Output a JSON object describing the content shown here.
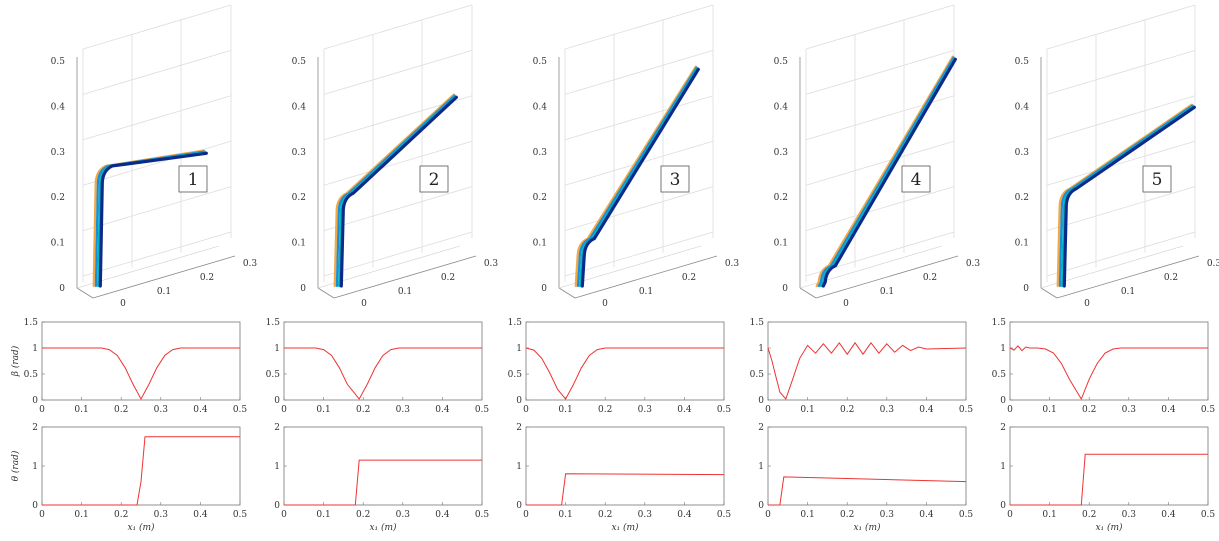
{
  "chart_data": [
    {
      "type": "line",
      "row": "trajectory-3d",
      "panels": [
        {
          "label": "1",
          "knee_z": 0.26
        },
        {
          "label": "2",
          "knee_z": 0.2
        },
        {
          "label": "3",
          "knee_z": 0.1
        },
        {
          "label": "4",
          "knee_z": 0.04
        },
        {
          "label": "5",
          "knee_z": 0.21
        }
      ],
      "z_ticks": [
        "0",
        "0.1",
        "0.2",
        "0.3",
        "0.4",
        "0.5"
      ],
      "x_ticks": [
        "0"
      ],
      "y_ticks": [
        "0.1",
        "0.2",
        "0.3"
      ],
      "zlim": [
        0,
        0.5
      ],
      "series_colors": [
        "#f4a742",
        "#1a8fd6",
        "#00b7c4",
        "#0a2a8a"
      ]
    },
    {
      "type": "line",
      "row": "beta",
      "ylabel": "β (rad)",
      "xlim": [
        0,
        0.5
      ],
      "ylim": [
        0,
        1.5
      ],
      "x_ticks": [
        "0",
        "0.1",
        "0.2",
        "0.3",
        "0.4",
        "0.5"
      ],
      "y_ticks": [
        "0",
        "0.5",
        "1",
        "1.5"
      ],
      "panels": [
        {
          "x": [
            0,
            0.15,
            0.17,
            0.19,
            0.21,
            0.23,
            0.25,
            0.27,
            0.29,
            0.31,
            0.33,
            0.35,
            0.5
          ],
          "y": [
            1,
            1,
            0.97,
            0.86,
            0.62,
            0.3,
            0.02,
            0.3,
            0.62,
            0.86,
            0.97,
            1,
            1
          ]
        },
        {
          "x": [
            0,
            0.08,
            0.1,
            0.12,
            0.14,
            0.16,
            0.19,
            0.21,
            0.23,
            0.25,
            0.27,
            0.29,
            0.5
          ],
          "y": [
            1,
            1,
            0.97,
            0.86,
            0.62,
            0.3,
            0.02,
            0.3,
            0.62,
            0.86,
            0.97,
            1,
            1
          ]
        },
        {
          "x": [
            0,
            0.02,
            0.04,
            0.06,
            0.08,
            0.1,
            0.12,
            0.14,
            0.16,
            0.18,
            0.2,
            0.5
          ],
          "y": [
            1,
            0.96,
            0.8,
            0.52,
            0.2,
            0.02,
            0.3,
            0.62,
            0.86,
            0.97,
            1,
            1
          ]
        },
        {
          "x": [
            0,
            0.01,
            0.02,
            0.03,
            0.045,
            0.06,
            0.08,
            0.1,
            0.12,
            0.14,
            0.16,
            0.18,
            0.2,
            0.22,
            0.24,
            0.26,
            0.28,
            0.3,
            0.32,
            0.34,
            0.36,
            0.38,
            0.4,
            0.5
          ],
          "y": [
            1,
            0.75,
            0.45,
            0.15,
            0.02,
            0.35,
            0.8,
            1.05,
            0.9,
            1.08,
            0.9,
            1.1,
            0.88,
            1.1,
            0.88,
            1.1,
            0.9,
            1.08,
            0.92,
            1.05,
            0.95,
            1.02,
            0.98,
            1
          ]
        },
        {
          "x": [
            0,
            0.01,
            0.02,
            0.03,
            0.04,
            0.05,
            0.07,
            0.09,
            0.11,
            0.13,
            0.15,
            0.18,
            0.2,
            0.22,
            0.24,
            0.26,
            0.28,
            0.5
          ],
          "y": [
            1,
            0.96,
            1.04,
            0.95,
            1.02,
            1,
            1,
            0.98,
            0.9,
            0.7,
            0.4,
            0.02,
            0.4,
            0.7,
            0.9,
            0.98,
            1,
            1
          ]
        }
      ]
    },
    {
      "type": "line",
      "row": "theta",
      "ylabel": "θ (rad)",
      "xlabel": "x₁ (m)",
      "xlim": [
        0,
        0.5
      ],
      "ylim": [
        0,
        2
      ],
      "x_ticks": [
        "0",
        "0.1",
        "0.2",
        "0.3",
        "0.4",
        "0.5"
      ],
      "y_ticks": [
        "0",
        "1",
        "2"
      ],
      "panels": [
        {
          "x": [
            0,
            0.24,
            0.25,
            0.26,
            0.5
          ],
          "y": [
            0,
            0,
            0.6,
            1.75,
            1.75
          ]
        },
        {
          "x": [
            0,
            0.18,
            0.19,
            0.5
          ],
          "y": [
            0,
            0,
            1.15,
            1.15
          ]
        },
        {
          "x": [
            0,
            0.09,
            0.1,
            0.5
          ],
          "y": [
            0,
            0,
            0.8,
            0.78
          ]
        },
        {
          "x": [
            0,
            0.03,
            0.04,
            0.5
          ],
          "y": [
            0,
            0,
            0.72,
            0.6
          ]
        },
        {
          "x": [
            0,
            0.18,
            0.19,
            0.5
          ],
          "y": [
            0,
            0,
            1.3,
            1.3
          ]
        }
      ]
    }
  ]
}
